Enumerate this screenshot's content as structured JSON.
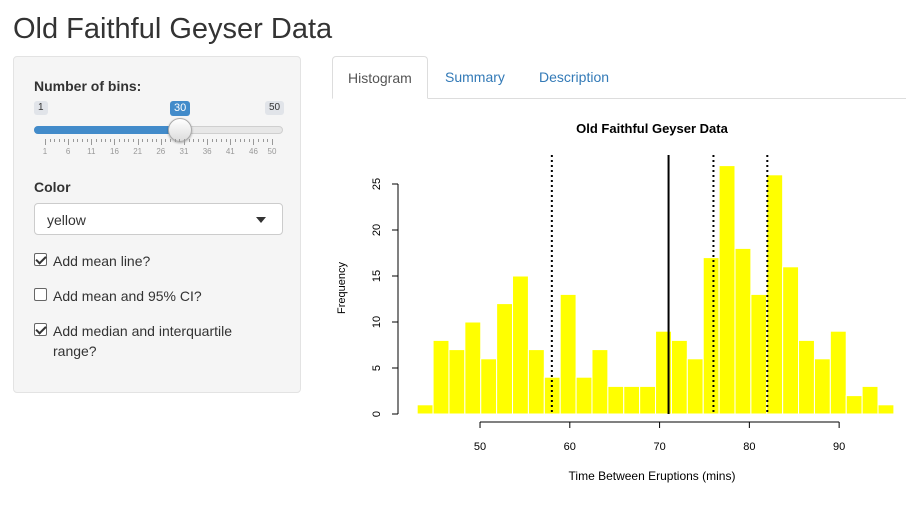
{
  "app": {
    "title": "Old Faithful Geyser Data"
  },
  "sidebar": {
    "bins_label": "Number of bins:",
    "slider": {
      "min": 1,
      "max": 50,
      "value": 30,
      "min_label": "1",
      "max_label": "50",
      "value_label": "30",
      "tick_labels": [
        "1",
        "6",
        "11",
        "16",
        "21",
        "26",
        "31",
        "36",
        "41",
        "46",
        "50"
      ]
    },
    "color_label": "Color",
    "color_select": {
      "value": "yellow"
    },
    "checkboxes": [
      {
        "label": "Add mean line?",
        "checked": true
      },
      {
        "label": "Add mean and 95% CI?",
        "checked": false
      },
      {
        "label": "Add median and interquartile",
        "label2": "range?",
        "checked": true
      }
    ]
  },
  "tabs": [
    {
      "label": "Histogram",
      "active": true
    },
    {
      "label": "Summary",
      "active": false
    },
    {
      "label": "Description",
      "active": false
    }
  ],
  "colors": {
    "bar": "#ffff00",
    "accent": "#428bca",
    "link": "#337ab7"
  },
  "chart_data": {
    "type": "bar",
    "title": "Old Faithful Geyser Data",
    "xlabel": "Time Between Eruptions (mins)",
    "ylabel": "Frequency",
    "bin_start": 43.0,
    "bin_width": 1.77,
    "values": [
      1,
      8,
      7,
      10,
      6,
      12,
      15,
      7,
      4,
      13,
      4,
      7,
      3,
      3,
      3,
      9,
      8,
      6,
      17,
      27,
      18,
      13,
      26,
      16,
      8,
      6,
      9,
      2,
      3,
      1
    ],
    "xlim": [
      42.2,
      96.0
    ],
    "ylim": [
      0,
      27.5
    ],
    "x_ticks": [
      50,
      60,
      70,
      80,
      90
    ],
    "x_tick_labels": [
      "50",
      "60",
      "70",
      "80",
      "90"
    ],
    "y_ticks": [
      0,
      5,
      10,
      15,
      20,
      25
    ],
    "y_tick_labels": [
      "0",
      "5",
      "10",
      "15",
      "20",
      "25"
    ],
    "lines": [
      {
        "name": "mean",
        "x": 71,
        "style": "solid"
      },
      {
        "name": "q1",
        "x": 58,
        "style": "dotted"
      },
      {
        "name": "median",
        "x": 76,
        "style": "dotted"
      },
      {
        "name": "q3",
        "x": 82,
        "style": "dotted"
      }
    ]
  }
}
